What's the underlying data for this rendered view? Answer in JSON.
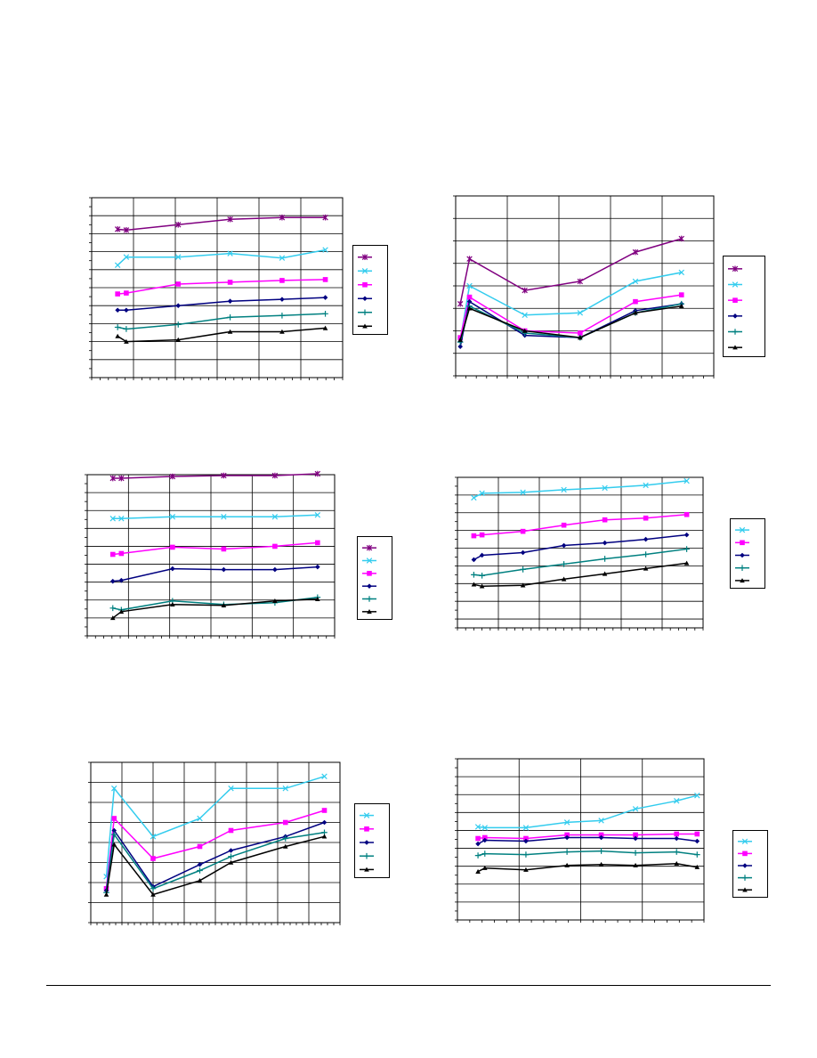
{
  "chart_data": [
    {
      "type": "line",
      "xlim": [
        0,
        29
      ],
      "ylim": [
        0,
        20
      ],
      "xticks": 6,
      "yticks": 20,
      "grid": true,
      "legend": "right",
      "series": [
        {
          "marker": "star",
          "color": "#800080",
          "x": [
            3,
            4,
            10,
            16,
            22,
            27
          ],
          "y": [
            16.5,
            16.4,
            17,
            17.6,
            17.8,
            17.8
          ]
        },
        {
          "marker": "x",
          "color": "#33CCEE",
          "x": [
            3,
            4,
            10,
            16,
            22,
            27
          ],
          "y": [
            12.5,
            13.4,
            13.4,
            13.8,
            13.3,
            14.2
          ]
        },
        {
          "marker": "square",
          "color": "#FF00FF",
          "x": [
            3,
            4,
            10,
            16,
            22,
            27
          ],
          "y": [
            9.3,
            9.4,
            10.4,
            10.6,
            10.8,
            10.9
          ]
        },
        {
          "marker": "diamond",
          "color": "#000080",
          "x": [
            3,
            4,
            10,
            16,
            22,
            27
          ],
          "y": [
            7.5,
            7.5,
            8,
            8.5,
            8.7,
            8.9
          ]
        },
        {
          "marker": "plus",
          "color": "#008080",
          "x": [
            3,
            4,
            10,
            16,
            22,
            27
          ],
          "y": [
            5.6,
            5.4,
            5.9,
            6.7,
            6.9,
            7.1
          ]
        },
        {
          "marker": "triangle",
          "color": "#000000",
          "x": [
            3,
            4,
            10,
            16,
            22,
            27
          ],
          "y": [
            4.6,
            4,
            4.2,
            5.1,
            5.1,
            5.5
          ]
        }
      ]
    },
    {
      "type": "line",
      "xlim": [
        0,
        28
      ],
      "ylim": [
        0,
        8
      ],
      "xticks": 5,
      "yticks": 8,
      "grid": true,
      "legend": "right",
      "series": [
        {
          "marker": "star",
          "color": "#800080",
          "x": [
            0.5,
            1.5,
            7.5,
            13.5,
            19.5,
            24.5
          ],
          "y": [
            3.2,
            5.2,
            3.8,
            4.2,
            5.5,
            6.1
          ]
        },
        {
          "marker": "x",
          "color": "#33CCEE",
          "x": [
            0.5,
            1.5,
            7.5,
            13.5,
            19.5,
            24.5
          ],
          "y": [
            1.6,
            4,
            2.7,
            2.8,
            4.2,
            4.6
          ]
        },
        {
          "marker": "square",
          "color": "#FF00FF",
          "x": [
            0.5,
            1.5,
            7.5,
            13.5,
            19.5,
            24.5
          ],
          "y": [
            1.7,
            3.5,
            2,
            1.9,
            3.3,
            3.6
          ]
        },
        {
          "marker": "diamond",
          "color": "#000080",
          "x": [
            0.5,
            1.5,
            7.5,
            13.5,
            19.5,
            24.5
          ],
          "y": [
            1.3,
            3.3,
            1.8,
            1.7,
            2.9,
            3.2
          ]
        },
        {
          "marker": "plus",
          "color": "#008080",
          "x": [
            0.5,
            1.5,
            7.5,
            13.5,
            19.5,
            24.5
          ],
          "y": [
            1.5,
            3.1,
            1.9,
            1.7,
            2.8,
            3.2
          ]
        },
        {
          "marker": "triangle",
          "color": "#000000",
          "x": [
            0.5,
            1.5,
            7.5,
            13.5,
            19.5,
            24.5
          ],
          "y": [
            1.6,
            3,
            2,
            1.7,
            2.8,
            3.1
          ]
        }
      ]
    },
    {
      "type": "line",
      "xlim": [
        0,
        29
      ],
      "ylim": [
        0,
        18
      ],
      "xticks": 6,
      "yticks": 18,
      "grid": true,
      "legend": "right",
      "series": [
        {
          "marker": "star",
          "color": "#800080",
          "x": [
            3,
            4,
            10,
            16,
            22,
            27
          ],
          "y": [
            17.6,
            17.6,
            17.8,
            17.9,
            17.9,
            18.1
          ]
        },
        {
          "marker": "x",
          "color": "#33CCEE",
          "x": [
            3,
            4,
            10,
            16,
            22,
            27
          ],
          "y": [
            13.1,
            13.1,
            13.3,
            13.3,
            13.3,
            13.5
          ]
        },
        {
          "marker": "square",
          "color": "#FF00FF",
          "x": [
            3,
            4,
            10,
            16,
            22,
            27
          ],
          "y": [
            9.1,
            9.2,
            9.9,
            9.7,
            10,
            10.4
          ]
        },
        {
          "marker": "diamond",
          "color": "#000080",
          "x": [
            3,
            4,
            10,
            16,
            22,
            27
          ],
          "y": [
            6.1,
            6.2,
            7.5,
            7.4,
            7.4,
            7.7
          ]
        },
        {
          "marker": "plus",
          "color": "#008080",
          "x": [
            3,
            4,
            10,
            16,
            22,
            27
          ],
          "y": [
            3.1,
            2.9,
            3.9,
            3.5,
            3.7,
            4.3
          ]
        },
        {
          "marker": "triangle",
          "color": "#000000",
          "x": [
            3,
            4,
            10,
            16,
            22,
            27
          ],
          "y": [
            2,
            2.7,
            3.5,
            3.4,
            3.9,
            4.1
          ]
        }
      ]
    },
    {
      "type": "line",
      "xlim": [
        0,
        30
      ],
      "ylim": [
        0,
        17
      ],
      "xticks": 6,
      "yticks": 17,
      "grid": true,
      "legend": "right",
      "series": [
        {
          "marker": "x",
          "color": "#33CCEE",
          "x": [
            2,
            3,
            8,
            13,
            18,
            23,
            28
          ],
          "y": [
            14.7,
            15.2,
            15.3,
            15.6,
            15.8,
            16.1,
            16.6
          ]
        },
        {
          "marker": "square",
          "color": "#FF00FF",
          "x": [
            2,
            3,
            8,
            13,
            18,
            23,
            28
          ],
          "y": [
            10.4,
            10.5,
            10.9,
            11.6,
            12.2,
            12.4,
            12.8
          ]
        },
        {
          "marker": "diamond",
          "color": "#000080",
          "x": [
            2,
            3,
            8,
            13,
            18,
            23,
            28
          ],
          "y": [
            7.7,
            8.2,
            8.5,
            9.3,
            9.6,
            10,
            10.5
          ]
        },
        {
          "marker": "plus",
          "color": "#008080",
          "x": [
            2,
            3,
            8,
            13,
            18,
            23,
            28
          ],
          "y": [
            6,
            5.9,
            6.6,
            7.2,
            7.8,
            8.3,
            8.9
          ]
        },
        {
          "marker": "triangle",
          "color": "#000000",
          "x": [
            2,
            3,
            8,
            13,
            18,
            23,
            28
          ],
          "y": [
            4.9,
            4.7,
            4.8,
            5.5,
            6.1,
            6.7,
            7.3
          ]
        }
      ]
    },
    {
      "type": "line",
      "xlim": [
        0,
        32
      ],
      "ylim": [
        0,
        8
      ],
      "xticks": 8,
      "yticks": 8,
      "grid": true,
      "legend": "right",
      "series": [
        {
          "marker": "x",
          "color": "#33CCEE",
          "x": [
            2,
            3,
            8,
            14,
            18,
            25,
            30
          ],
          "y": [
            2.3,
            6.7,
            4.3,
            5.2,
            6.7,
            6.7,
            7.3
          ]
        },
        {
          "marker": "square",
          "color": "#FF00FF",
          "x": [
            2,
            3,
            8,
            14,
            18,
            25,
            30
          ],
          "y": [
            1.7,
            5.2,
            3.2,
            3.8,
            4.6,
            5,
            5.6
          ]
        },
        {
          "marker": "diamond",
          "color": "#000080",
          "x": [
            2,
            3,
            8,
            14,
            18,
            25,
            30
          ],
          "y": [
            1.6,
            4.6,
            1.8,
            2.9,
            3.6,
            4.3,
            5
          ]
        },
        {
          "marker": "plus",
          "color": "#008080",
          "x": [
            2,
            3,
            8,
            14,
            18,
            25,
            30
          ],
          "y": [
            1.5,
            4.4,
            1.7,
            2.6,
            3.3,
            4.2,
            4.5
          ]
        },
        {
          "marker": "triangle",
          "color": "#000000",
          "x": [
            2,
            3,
            8,
            14,
            18,
            25,
            30
          ],
          "y": [
            1.4,
            3.9,
            1.4,
            2.1,
            3,
            3.8,
            4.3
          ]
        }
      ]
    },
    {
      "type": "line",
      "xlim": [
        0,
        36
      ],
      "ylim": [
        0,
        18
      ],
      "xticks": 4,
      "yticks": 18,
      "grid": true,
      "legend": "right",
      "series": [
        {
          "marker": "x",
          "color": "#33CCEE",
          "x": [
            3,
            4,
            10,
            16,
            21,
            26,
            32,
            35
          ],
          "y": [
            10.4,
            10.3,
            10.3,
            10.9,
            11.1,
            12.4,
            13.3,
            13.9
          ]
        },
        {
          "marker": "square",
          "color": "#FF00FF",
          "x": [
            3,
            4,
            10,
            16,
            21,
            26,
            32,
            35
          ],
          "y": [
            9.1,
            9.2,
            9.1,
            9.5,
            9.5,
            9.5,
            9.6,
            9.6
          ]
        },
        {
          "marker": "diamond",
          "color": "#000080",
          "x": [
            3,
            4,
            10,
            16,
            21,
            26,
            32,
            35
          ],
          "y": [
            8.5,
            8.9,
            8.8,
            9.2,
            9.2,
            9.1,
            9.1,
            8.8
          ]
        },
        {
          "marker": "plus",
          "color": "#008080",
          "x": [
            3,
            4,
            10,
            16,
            21,
            26,
            32,
            35
          ],
          "y": [
            7.2,
            7.4,
            7.3,
            7.6,
            7.7,
            7.5,
            7.6,
            7.3
          ]
        },
        {
          "marker": "triangle",
          "color": "#000000",
          "x": [
            3,
            4,
            10,
            16,
            21,
            26,
            32,
            35
          ],
          "y": [
            5.4,
            5.8,
            5.6,
            6.1,
            6.2,
            6.1,
            6.3,
            5.9
          ]
        }
      ]
    }
  ]
}
